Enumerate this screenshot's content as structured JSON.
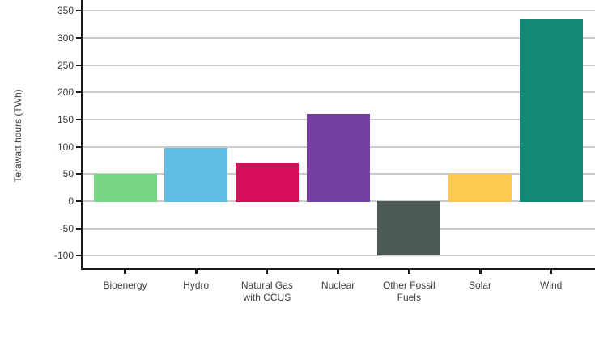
{
  "chart_data": {
    "type": "bar",
    "title": "",
    "categories": [
      "Bioenergy",
      "Hydro",
      "Natural Gas with CCUS",
      "Nuclear",
      "Other Fossil Fuels",
      "Solar",
      "Wind"
    ],
    "tick_labels": [
      "Bioenergy",
      "Hydro",
      "Natural Gas\nwith CCUS",
      "Nuclear",
      "Other Fossil\nFuels",
      "Solar",
      "Wind"
    ],
    "values": [
      50,
      98,
      70,
      160,
      -100,
      50,
      335
    ],
    "bar_colors": [
      "#79d486",
      "#63bee3",
      "#d70f5b",
      "#7440a0",
      "#4c5b58",
      "#fdc951",
      "#138874"
    ],
    "xlabel": "",
    "ylabel": "Terawatt hours (TWh)",
    "ylim": [
      -122,
      370
    ],
    "yticks": [
      -100,
      -50,
      0,
      50,
      100,
      150,
      200,
      250,
      300,
      350
    ],
    "grid": true,
    "legend": false
  },
  "styles": {
    "background": "#ffffff",
    "grid_color": "#cbcbcb",
    "axis_color": "#1a1a1a",
    "text_color": "#3d3d3d"
  }
}
